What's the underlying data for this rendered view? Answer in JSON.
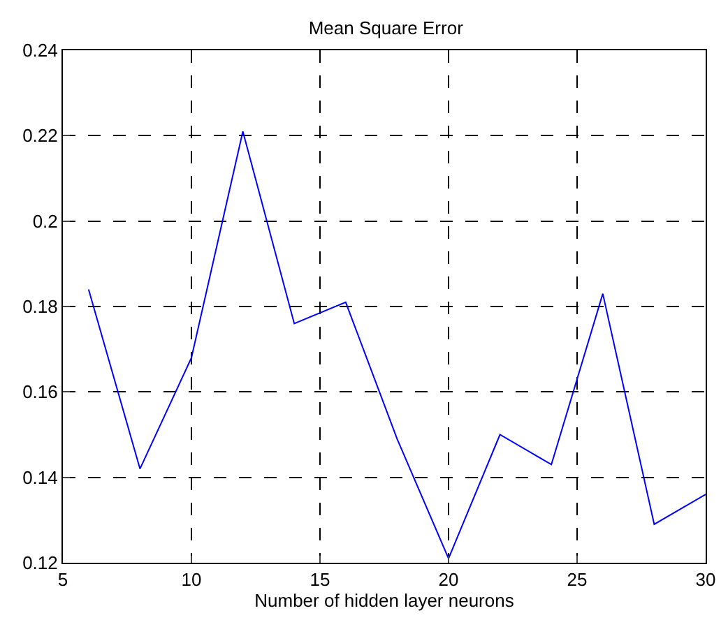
{
  "chart_data": {
    "type": "line",
    "title": "Mean Square Error",
    "xlabel": "Number of hidden layer neurons",
    "x": [
      6,
      8,
      10,
      12,
      14,
      16,
      18,
      20,
      22,
      24,
      26,
      28,
      30
    ],
    "series": [
      {
        "color": "#0000ff",
        "values": [
          0.184,
          0.142,
          0.168,
          0.221,
          0.176,
          0.181,
          0.149,
          0.121,
          0.15,
          0.143,
          0.183,
          0.129,
          0.136
        ]
      }
    ],
    "xlim": [
      5,
      30
    ],
    "xticks": [
      5,
      10,
      15,
      20,
      25,
      30
    ],
    "ylim": [
      0.12,
      0.24
    ],
    "yticks": [
      0.12,
      0.14,
      0.16,
      0.18,
      0.2,
      0.22,
      0.24
    ],
    "grid": true,
    "line_style": "solid",
    "legend": false
  }
}
